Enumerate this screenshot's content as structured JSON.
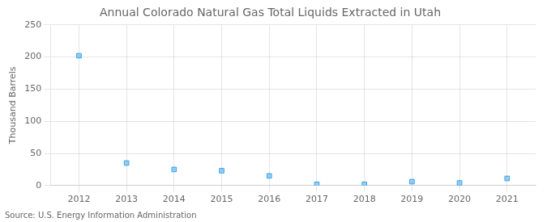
{
  "chart_data": {
    "type": "scatter",
    "title": "Annual Colorado Natural Gas Total Liquids Extracted in Utah",
    "ylabel": "Thousand Barrels",
    "annotations": [
      "Source: U.S. Energy Information Administration"
    ],
    "x": [
      2012,
      2013,
      2014,
      2015,
      2016,
      2017,
      2018,
      2019,
      2020,
      2021
    ],
    "values": [
      202,
      35,
      25,
      23,
      15,
      2,
      2,
      6,
      4,
      11
    ],
    "xlim": [
      2011.4,
      2021.6
    ],
    "xticks": [
      2012,
      2013,
      2014,
      2015,
      2016,
      2017,
      2018,
      2019,
      2020,
      2021
    ],
    "ylim": [
      0,
      250
    ],
    "yticks": [
      0,
      50,
      100,
      150,
      200,
      250
    ],
    "marker": "square",
    "grid": true
  }
}
